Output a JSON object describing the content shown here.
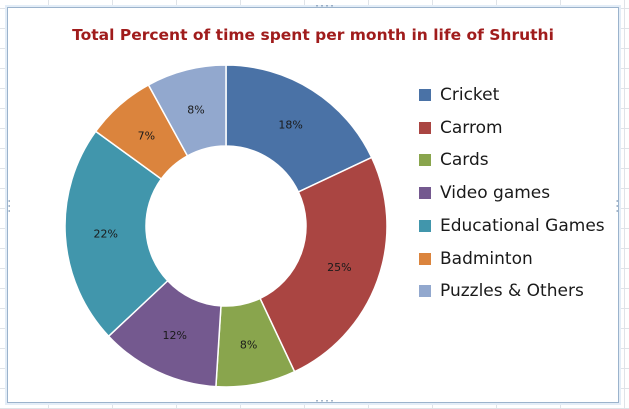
{
  "chart_data": {
    "type": "pie",
    "donut": true,
    "title": "Total Percent of time spent per month in life of Shruthi",
    "categories": [
      "Cricket",
      "Carrom",
      "Cards",
      "Video games",
      "Educational Games",
      "Badminton",
      "Puzzles & Others"
    ],
    "values": [
      18,
      25,
      8,
      12,
      22,
      7,
      8
    ],
    "data_labels": [
      "18%",
      "25%",
      "8%",
      "12%",
      "22%",
      "7%",
      "8%"
    ],
    "colors": [
      "#4a72a6",
      "#aa4542",
      "#89a54d",
      "#74598f",
      "#4196ac",
      "#db843d",
      "#92a8ce"
    ],
    "legend_position": "right"
  }
}
